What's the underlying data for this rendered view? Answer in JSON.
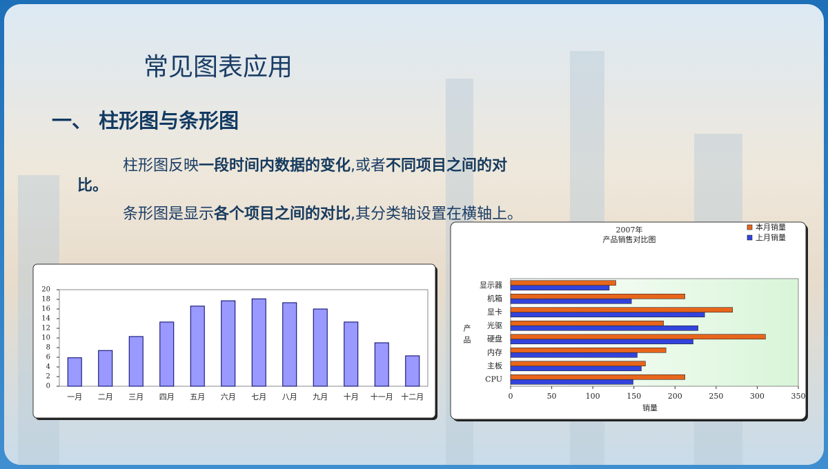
{
  "header": {
    "title": "常见图表应用",
    "section": "一、 柱形图与条形图"
  },
  "paragraphs": [
    [
      {
        "text": "柱形图反映",
        "bold": false
      },
      {
        "text": "一段时间内数据的变化",
        "bold": true
      },
      {
        "text": ",或者",
        "bold": false
      },
      {
        "text": "不同项目之间的对比。",
        "bold": true
      }
    ],
    [
      {
        "text": "条形图是显示",
        "bold": false
      },
      {
        "text": "各个项目之间的对比",
        "bold": true
      },
      {
        "text": ",其分类轴设置在横轴上。",
        "bold": false
      }
    ]
  ],
  "chart_data": [
    {
      "type": "bar",
      "categories": [
        "一月",
        "二月",
        "三月",
        "四月",
        "五月",
        "六月",
        "七月",
        "八月",
        "九月",
        "十月",
        "十一月",
        "十二月"
      ],
      "values": [
        5.9,
        7.4,
        10.3,
        13.3,
        16.6,
        17.7,
        18.1,
        17.3,
        16,
        13.3,
        9,
        6.3
      ],
      "color": "#9999ff",
      "ylim": [
        0,
        20
      ],
      "yticks": [
        0,
        2,
        4,
        6,
        8,
        10,
        12,
        14,
        16,
        18,
        20
      ],
      "grid": false
    },
    {
      "type": "bar",
      "horizontal": true,
      "title": "2007年",
      "subtitle": "产品销售对比图",
      "x_label": "销量",
      "y_label": "产品",
      "categories": [
        "显示器",
        "机箱",
        "显卡",
        "光驱",
        "硬盘",
        "内存",
        "主板",
        "CPU"
      ],
      "series": [
        {
          "name": "本月销量",
          "color": "#e8661c",
          "values": [
            128,
            212,
            270,
            186,
            310,
            189,
            164,
            212
          ]
        },
        {
          "name": "上月销量",
          "color": "#3344dd",
          "values": [
            120,
            147,
            236,
            228,
            222,
            154,
            159,
            149
          ]
        }
      ],
      "xlim": [
        0,
        350
      ],
      "xticks": [
        0,
        50,
        100,
        150,
        200,
        250,
        300,
        350
      ],
      "grid": false
    }
  ]
}
